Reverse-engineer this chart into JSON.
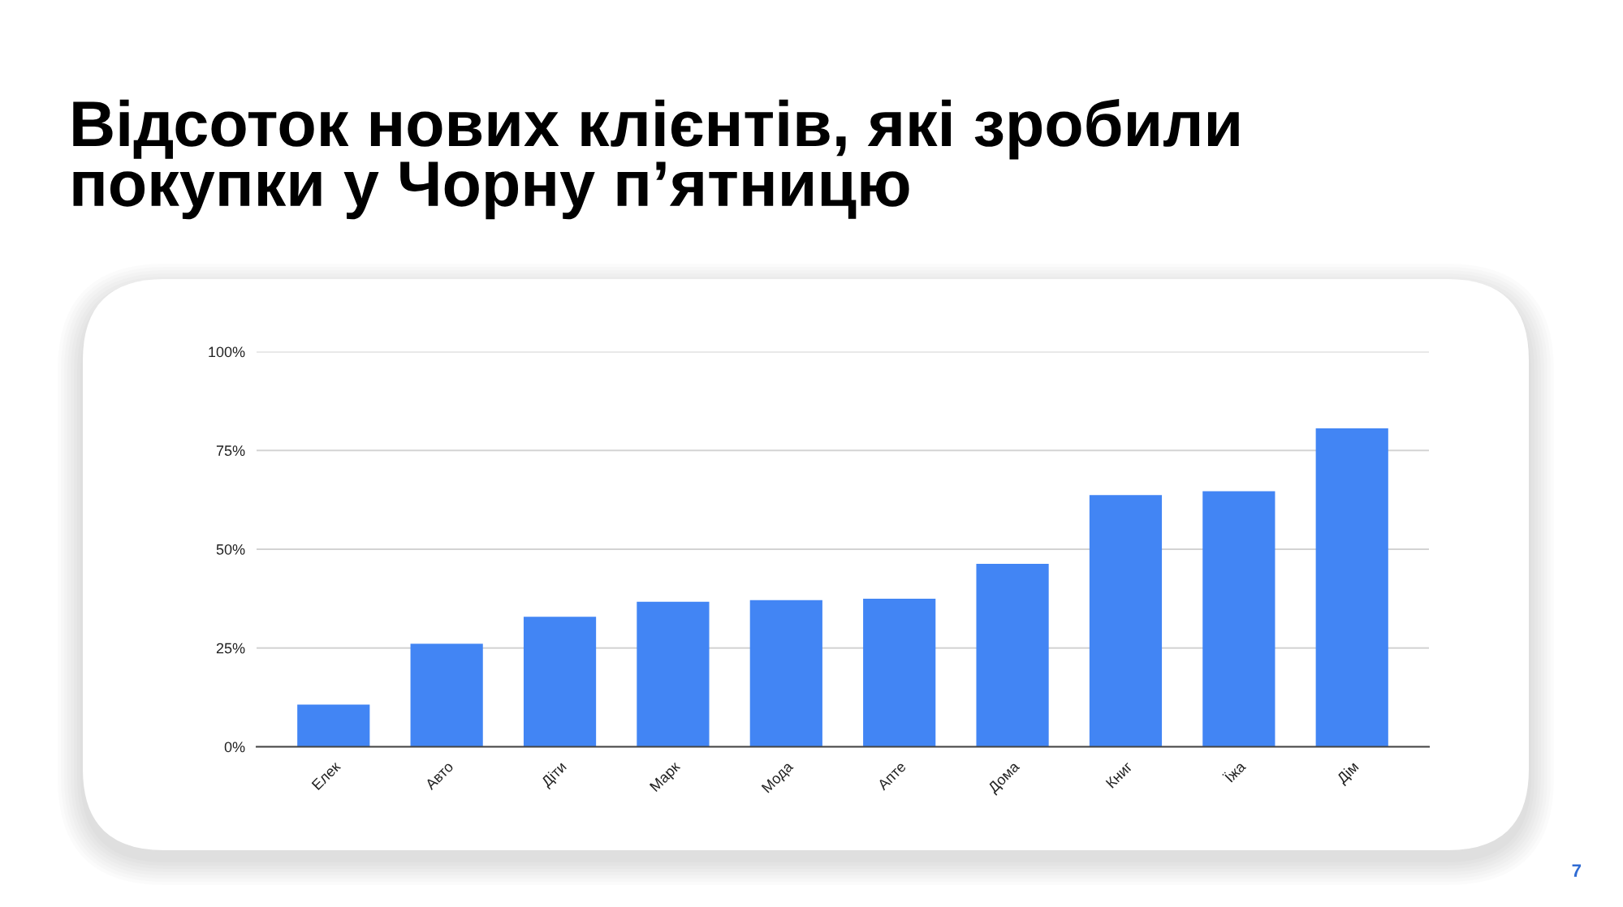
{
  "chart_data": {
    "type": "bar",
    "title": "Відсоток нових клієнтів, які зробили\nпокупки у Чорну п’ятницю",
    "categories": [
      "Елек",
      "Авто",
      "Діти",
      "Марк",
      "Мода",
      "Апте",
      "Дома",
      "Книг",
      "Їжа",
      "Дім"
    ],
    "values": [
      10.7,
      26.1,
      32.9,
      36.7,
      37.1,
      37.5,
      46.3,
      63.7,
      64.7,
      80.6
    ],
    "color": "#4285f4",
    "ylim": [
      0,
      100
    ],
    "yticks": [
      {
        "value": 0,
        "label": "0%"
      },
      {
        "value": 25,
        "label": "25%"
      },
      {
        "value": 50,
        "label": "50%"
      },
      {
        "value": 75,
        "label": "75%"
      },
      {
        "value": 100,
        "label": "100%"
      }
    ],
    "grid": "y",
    "annotations": [
      "7"
    ]
  }
}
